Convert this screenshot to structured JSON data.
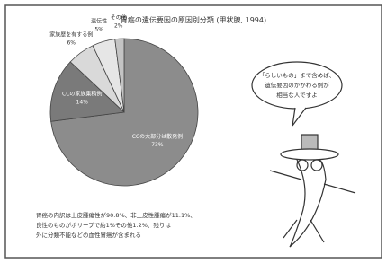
{
  "chart_data": {
    "type": "pie",
    "title": "胃癌の遺伝要因の原因別分類",
    "subtitle": "(甲状腺, 1994)",
    "categories": [
      "CCの大部分は散発例",
      "CCの家族集積例",
      "家族歴を有する例",
      "遺伝性",
      "その他"
    ],
    "values": [
      73,
      14,
      6,
      5,
      2
    ],
    "value_labels": [
      "73%",
      "14%",
      "6%",
      "5%",
      "2%"
    ],
    "colors": [
      "#8c8c8c",
      "#7a7a7a",
      "#d9d9d9",
      "#e6e6e6",
      "#c4c4c4"
    ],
    "note": [
      "胃癌の内訳は上皮腫瘍性が90.8%、非上皮性腫瘍が11.1%、",
      "良性のものがポリープで約1%その他1.2%、残りは",
      "外に分類不能などの血性胃癌が含まれる"
    ],
    "bubble": [
      "「らしいもの」まで含めば、",
      "遺伝要因のかかわる例が",
      "相当な人ですよ"
    ]
  }
}
